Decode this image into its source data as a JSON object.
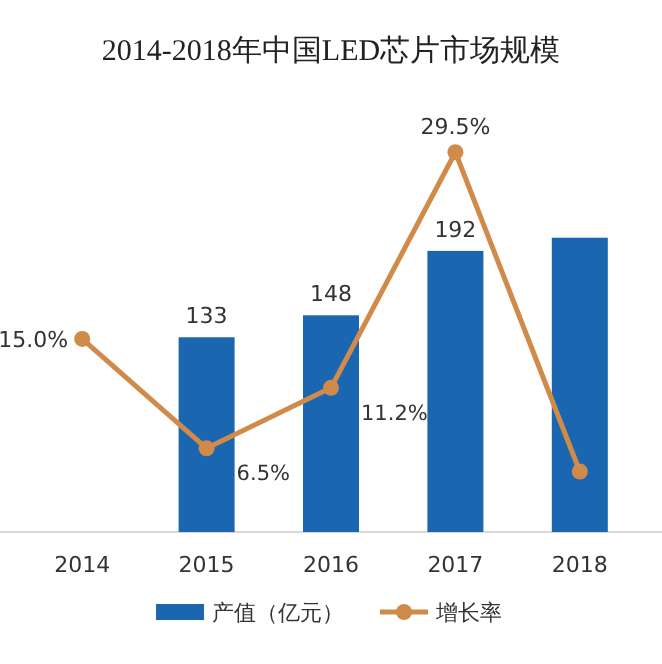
{
  "chart_data": {
    "type": "bar",
    "title": "2014-2018年中国LED芯片市场规模",
    "categories": [
      "2014",
      "2015",
      "2016",
      "2017",
      "2018"
    ],
    "legend": "bottom",
    "series": [
      {
        "name": "产值（亿元）",
        "color": "#1a66b0",
        "values": [
          null,
          133,
          148,
          192,
          201
        ],
        "value_labels": [
          null,
          "133",
          "148",
          "192",
          null
        ]
      },
      {
        "name": "增长率",
        "type": "line",
        "axis": "y2",
        "color": "#d08b4a",
        "marker": "circle",
        "values": [
          15.0,
          6.5,
          11.2,
          29.5,
          4.7
        ],
        "value_labels": [
          "15.0%",
          "6.5%",
          "11.2%",
          "29.5%",
          null
        ]
      }
    ]
  }
}
